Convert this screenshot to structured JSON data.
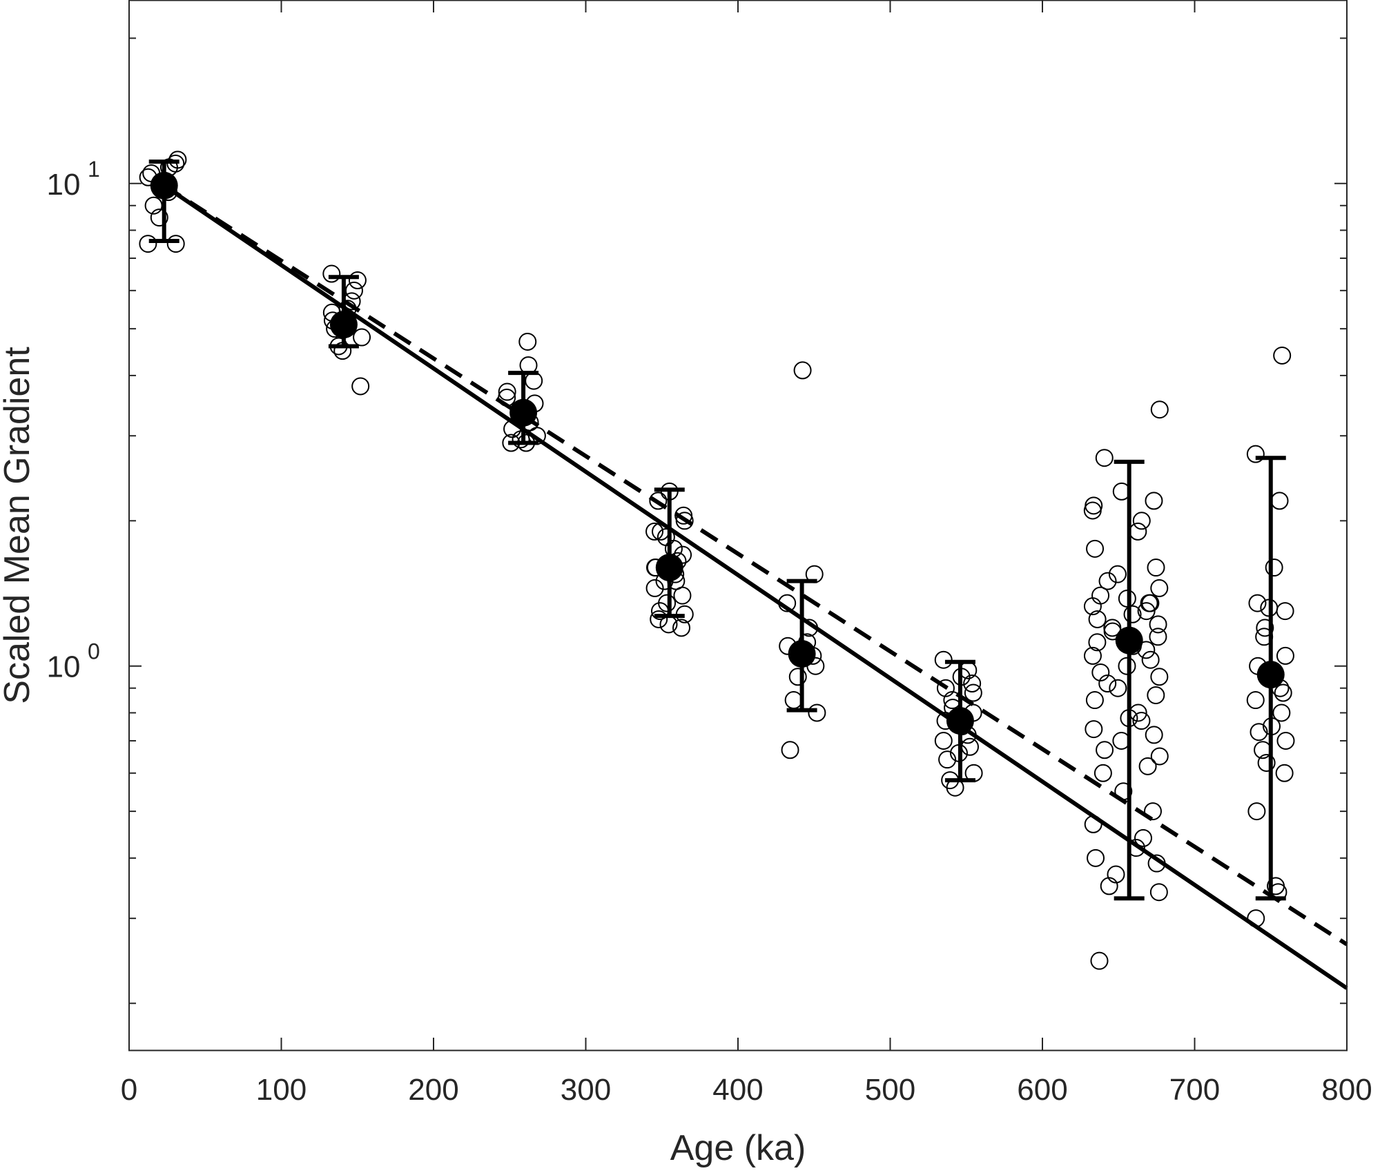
{
  "chart_data": {
    "type": "scatter",
    "title": "",
    "xlabel": "Age (ka)",
    "ylabel": "Scaled Mean Gradient",
    "xlim": [
      0,
      800
    ],
    "ylim": [
      0.16,
      24
    ],
    "yscale": "log",
    "grid": false,
    "x_ticks": [
      0,
      100,
      200,
      300,
      400,
      500,
      600,
      700,
      800
    ],
    "x_tick_labels": [
      "0",
      "100",
      "200",
      "300",
      "400",
      "500",
      "600",
      "700",
      "800"
    ],
    "y_ticks": [
      {
        "value": 1,
        "base": "10",
        "exp": "0"
      },
      {
        "value": 10,
        "base": "10",
        "exp": "1"
      }
    ],
    "samples": [
      {
        "x": 22,
        "y": [
          10.0,
          10.5,
          11.2,
          9.0,
          8.5,
          7.5,
          10.3,
          9.6,
          10.8,
          7.5,
          11.0,
          9.8
        ]
      },
      {
        "x": 143,
        "y": [
          6.5,
          6.3,
          5.5,
          5.0,
          4.8,
          4.6,
          4.5,
          3.8,
          5.2,
          5.7,
          6.0,
          5.4
        ]
      },
      {
        "x": 258,
        "y": [
          4.7,
          4.2,
          3.7,
          3.5,
          3.3,
          3.1,
          3.0,
          2.9,
          2.95,
          3.9,
          3.6,
          3.2,
          2.9
        ]
      },
      {
        "x": 355,
        "y": [
          2.3,
          2.2,
          2.0,
          1.9,
          1.85,
          1.7,
          1.6,
          1.55,
          1.5,
          1.45,
          1.4,
          1.35,
          1.3,
          1.28,
          1.25,
          1.22,
          1.2,
          1.9,
          1.65,
          1.75,
          1.6,
          2.05,
          1.5
        ]
      },
      {
        "x": 442,
        "y": [
          1.55,
          1.35,
          1.2,
          1.12,
          1.1,
          1.0,
          0.95,
          0.85,
          0.8,
          0.67,
          4.1,
          1.05
        ]
      },
      {
        "x": 545,
        "y": [
          1.03,
          0.98,
          0.95,
          0.9,
          0.88,
          0.85,
          0.82,
          0.8,
          0.77,
          0.75,
          0.72,
          0.7,
          0.68,
          0.66,
          0.64,
          0.6,
          0.58,
          0.56,
          0.92
        ]
      },
      {
        "x": 655,
        "y": [
          3.4,
          2.7,
          2.3,
          2.2,
          2.15,
          2.0,
          1.9,
          1.75,
          1.6,
          1.55,
          1.5,
          1.45,
          1.4,
          1.38,
          1.35,
          1.33,
          1.3,
          1.28,
          1.25,
          1.22,
          1.2,
          1.18,
          1.15,
          1.12,
          1.1,
          1.08,
          1.05,
          1.03,
          1.0,
          0.97,
          0.95,
          0.92,
          0.9,
          0.87,
          0.85,
          0.8,
          0.77,
          0.74,
          0.72,
          0.7,
          0.67,
          0.65,
          0.6,
          0.55,
          0.5,
          0.47,
          0.44,
          0.42,
          0.4,
          0.39,
          0.37,
          0.35,
          0.34,
          0.245,
          0.78,
          1.35,
          2.1,
          0.62
        ]
      },
      {
        "x": 750,
        "y": [
          4.4,
          2.75,
          2.2,
          1.6,
          1.35,
          1.3,
          1.2,
          1.15,
          1.05,
          1.0,
          0.95,
          0.9,
          0.85,
          0.8,
          0.75,
          0.73,
          0.7,
          0.67,
          0.63,
          0.6,
          0.5,
          0.35,
          0.34,
          0.3,
          0.88,
          1.32
        ]
      }
    ],
    "means": [
      {
        "x": 23,
        "y": 9.9,
        "lower": 7.6,
        "upper": 11.1
      },
      {
        "x": 141,
        "y": 5.1,
        "lower": 4.6,
        "upper": 6.4
      },
      {
        "x": 259,
        "y": 3.35,
        "lower": 2.9,
        "upper": 4.05
      },
      {
        "x": 355,
        "y": 1.6,
        "lower": 1.27,
        "upper": 2.32
      },
      {
        "x": 442,
        "y": 1.06,
        "lower": 0.81,
        "upper": 1.5
      },
      {
        "x": 546,
        "y": 0.77,
        "lower": 0.58,
        "upper": 1.02
      },
      {
        "x": 657,
        "y": 1.13,
        "lower": 0.33,
        "upper": 2.65
      },
      {
        "x": 750,
        "y": 0.96,
        "lower": 0.33,
        "upper": 2.7
      }
    ],
    "fits": [
      {
        "style": "solid",
        "x": [
          23,
          800
        ],
        "y": [
          9.9,
          0.215
        ]
      },
      {
        "style": "dashed",
        "x": [
          23,
          800
        ],
        "y": [
          9.9,
          0.265
        ]
      }
    ]
  }
}
